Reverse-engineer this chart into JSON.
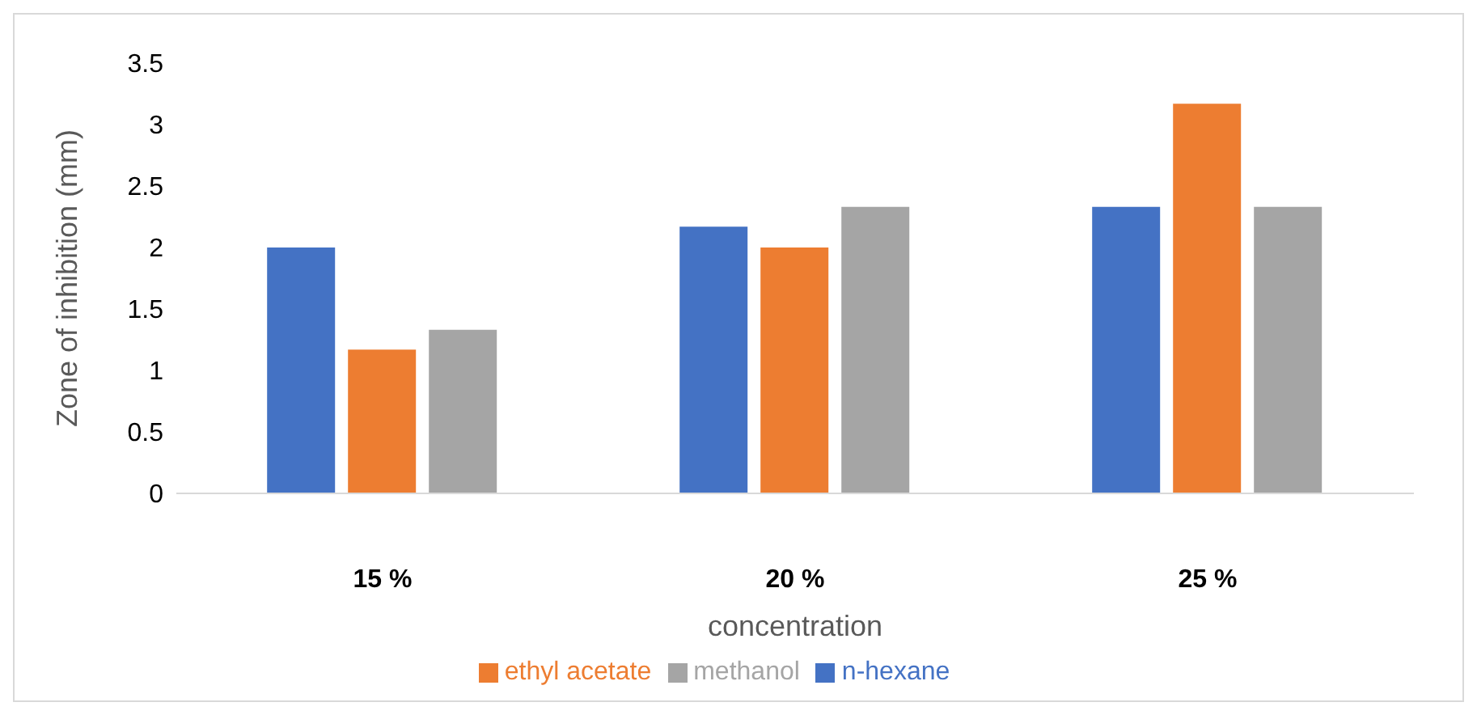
{
  "chart_data": {
    "type": "bar",
    "xlabel": "concentration",
    "ylabel": "Zone of inhibition (mm)",
    "categories": [
      "15 %",
      "20 %",
      "25 %"
    ],
    "series": [
      {
        "name": "n-hexane",
        "color": "#4472c4",
        "values": [
          2,
          2.17,
          2.33
        ]
      },
      {
        "name": "ethyl acetate",
        "color": "#ed7d31",
        "values": [
          1.17,
          2,
          3.17
        ]
      },
      {
        "name": "methanol",
        "color": "#a5a5a5",
        "values": [
          1.33,
          2.33,
          2.33
        ]
      }
    ],
    "ylim": [
      0,
      3.5
    ],
    "yticks": [
      0,
      0.5,
      1,
      1.5,
      2,
      2.5,
      3,
      3.5
    ],
    "grid": false,
    "legend": "bottom"
  }
}
